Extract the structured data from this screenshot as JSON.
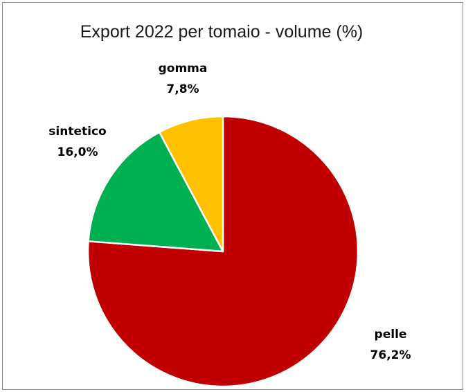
{
  "chart_data": {
    "type": "pie",
    "title": "Export 2022 per tomaio - volume (%)",
    "slices": [
      {
        "name": "pelle",
        "value": 76.2,
        "label": "76,2%",
        "color": "#C00000"
      },
      {
        "name": "sintetico",
        "value": 16.0,
        "label": "16,0%",
        "color": "#00B050"
      },
      {
        "name": "gomma",
        "value": 7.8,
        "label": "7,8%",
        "color": "#FFC000"
      }
    ],
    "start": "12 o'clock",
    "direction": "clockwise",
    "legend": "none"
  }
}
